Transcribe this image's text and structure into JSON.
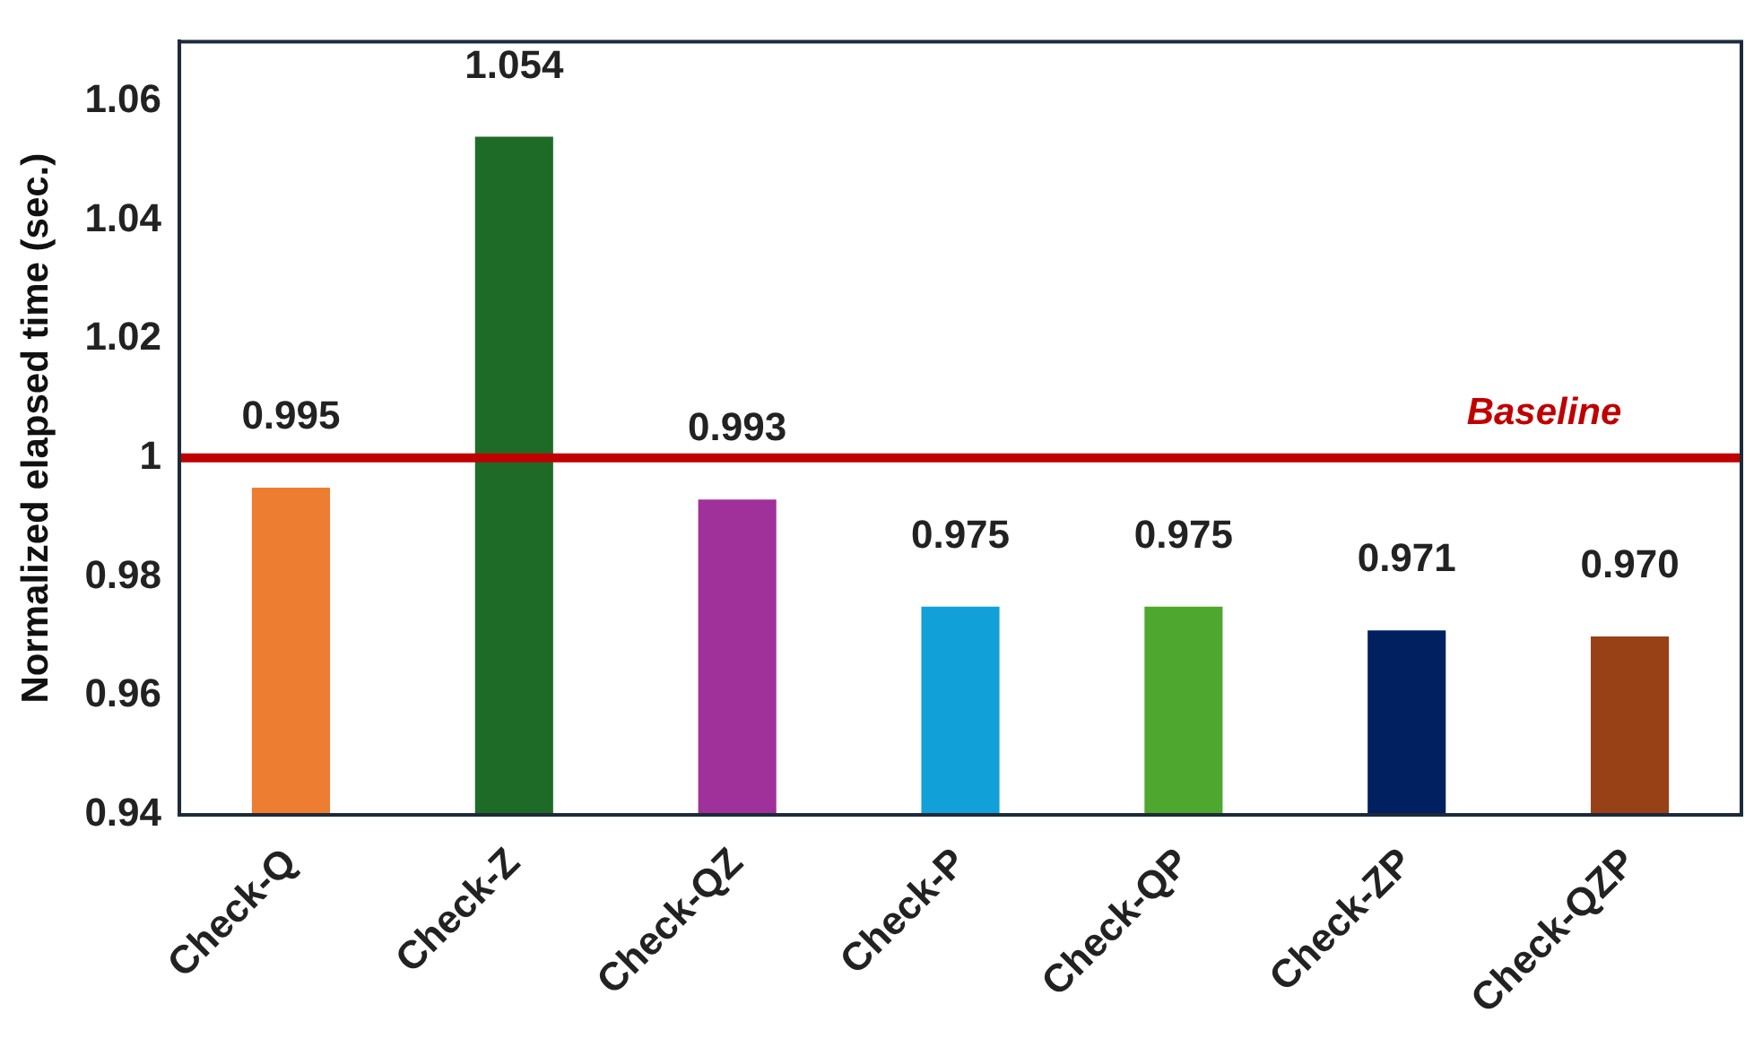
{
  "chart_data": {
    "type": "bar",
    "ylabel": "Normalized elapsed time (sec.)",
    "categories": [
      "Check-Q",
      "Check-Z",
      "Check-QZ",
      "Check-P",
      "Check-QP",
      "Check-ZP",
      "Check-QZP"
    ],
    "values": [
      0.995,
      1.054,
      0.993,
      0.975,
      0.975,
      0.971,
      0.97
    ],
    "colors": [
      "#ed7d31",
      "#1e6b28",
      "#a0309a",
      "#12a0d8",
      "#4ea72e",
      "#002060",
      "#984016"
    ],
    "value_labels": [
      "0.995",
      "1.054",
      "0.993",
      "0.975",
      "0.975",
      "0.971",
      "0.970"
    ],
    "ylim": [
      0.94,
      1.07
    ],
    "yticks": [
      0.94,
      0.96,
      0.98,
      1,
      1.02,
      1.04,
      1.06
    ],
    "ref_lines": [
      {
        "axis": "y",
        "value": 1,
        "label": "Baseline",
        "color": "#c00000"
      }
    ],
    "grid": false,
    "legend": false
  }
}
